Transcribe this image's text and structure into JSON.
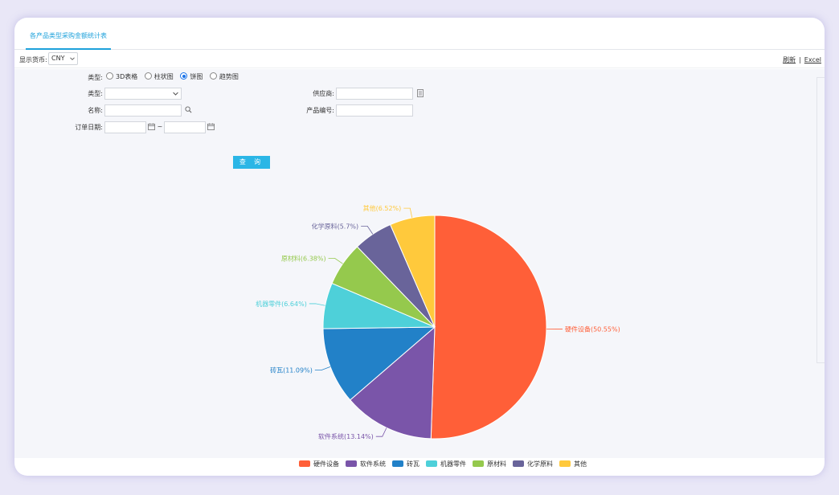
{
  "tab": {
    "label": "各产品类型采购金额统计表"
  },
  "toolbar": {
    "currency_label": "显示货币:",
    "currency_value": "CNY",
    "refresh_label": "刷新",
    "separator": "|",
    "excel_label": "Excel"
  },
  "filters": {
    "chart_type_label": "类型:",
    "chart_types": [
      "3D表格",
      "柱状图",
      "饼图",
      "趋势图"
    ],
    "selected_chart_type": "饼图",
    "category_label": "类型:",
    "category_value": "",
    "supplier_label": "供应商:",
    "supplier_value": "",
    "name_label": "名称:",
    "name_value": "",
    "product_code_label": "产品编号:",
    "product_code_value": "",
    "order_date_label": "订单日期:",
    "date_from": "",
    "date_separator": "~",
    "date_to": "",
    "query_label": "查 询"
  },
  "chart_data": {
    "type": "pie",
    "categories": [
      "硬件设备",
      "软件系统",
      "砖瓦",
      "机器零件",
      "原材料",
      "化学原料",
      "其他"
    ],
    "values": [
      50.55,
      13.14,
      11.09,
      6.64,
      6.38,
      5.7,
      6.52
    ],
    "data_labels": [
      "硬件设备(50.55%)",
      "软件系统(13.14%)",
      "砖瓦(11.09%)",
      "机器零件(6.64%)",
      "原材料(6.38%)",
      "化学原料(5.7%)",
      "其他(6.52%)"
    ],
    "colors": [
      "#ff5f38",
      "#7a55a9",
      "#2281c8",
      "#4ed0d9",
      "#95c94d",
      "#69649a",
      "#ffc93c"
    ],
    "legend_placement": "bottom"
  },
  "legend": {
    "items": [
      "硬件设备",
      "软件系统",
      "砖瓦",
      "机器零件",
      "原材料",
      "化学原料",
      "其他"
    ]
  }
}
